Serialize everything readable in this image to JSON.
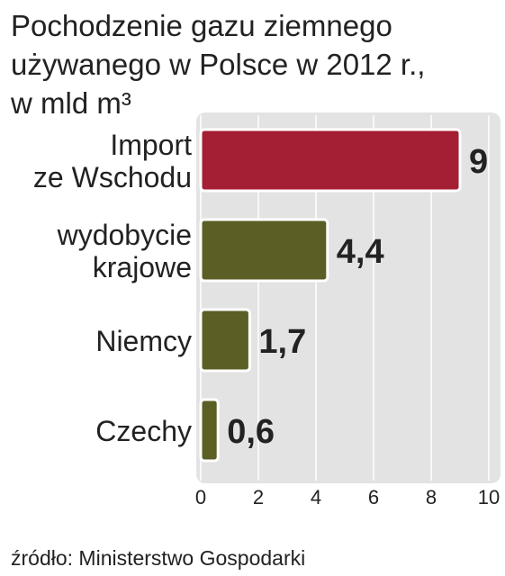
{
  "chart_data": {
    "type": "bar",
    "orientation": "horizontal",
    "title": [
      "Pochodzenie gazu ziemnego",
      "używanego w Polsce w 2012 r.,",
      "w mld m³"
    ],
    "categories": [
      [
        "Import",
        "ze Wschodu"
      ],
      [
        "wydobycie",
        "krajowe"
      ],
      [
        "Niemcy"
      ],
      [
        "Czechy"
      ]
    ],
    "values": [
      9,
      4.4,
      1.7,
      0.6
    ],
    "value_labels": [
      "9",
      "4,4",
      "1,7",
      "0,6"
    ],
    "colors": [
      "#a41e34",
      "#5b5e25",
      "#5b5e25",
      "#5b5e25"
    ],
    "xlim": [
      0,
      10
    ],
    "xticks": [
      0,
      2,
      4,
      6,
      8,
      10
    ],
    "grid": true,
    "source": "źródło: Ministerstwo Gospodarki"
  }
}
